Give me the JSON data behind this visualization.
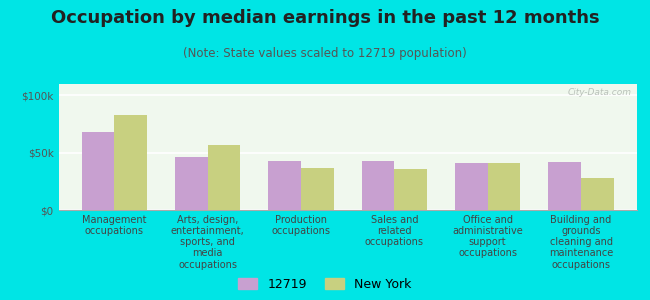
{
  "title": "Occupation by median earnings in the past 12 months",
  "subtitle": "(Note: State values scaled to 12719 population)",
  "watermark": "City-Data.com",
  "background_color": "#00e5e5",
  "plot_bg_color": "#f0f8ee",
  "categories": [
    "Management\noccupations",
    "Arts, design,\nentertainment,\nsports, and\nmedia\noccupations",
    "Production\noccupations",
    "Sales and\nrelated\noccupations",
    "Office and\nadministrative\nsupport\noccupations",
    "Building and\ngrounds\ncleaning and\nmaintenance\noccupations"
  ],
  "values_12719": [
    68000,
    46000,
    43000,
    43000,
    41000,
    42000
  ],
  "values_ny": [
    83000,
    57000,
    37000,
    36000,
    41000,
    28000
  ],
  "color_12719": "#c8a0d0",
  "color_ny": "#c8d080",
  "bar_width": 0.35,
  "ylim": [
    0,
    110000
  ],
  "yticks": [
    0,
    50000,
    100000
  ],
  "ytick_labels": [
    "$0",
    "$50k",
    "$100k"
  ],
  "legend_label_12719": "12719",
  "legend_label_ny": "New York",
  "title_fontsize": 13,
  "subtitle_fontsize": 8.5,
  "tick_fontsize": 7.5,
  "xlabel_fontsize": 7
}
